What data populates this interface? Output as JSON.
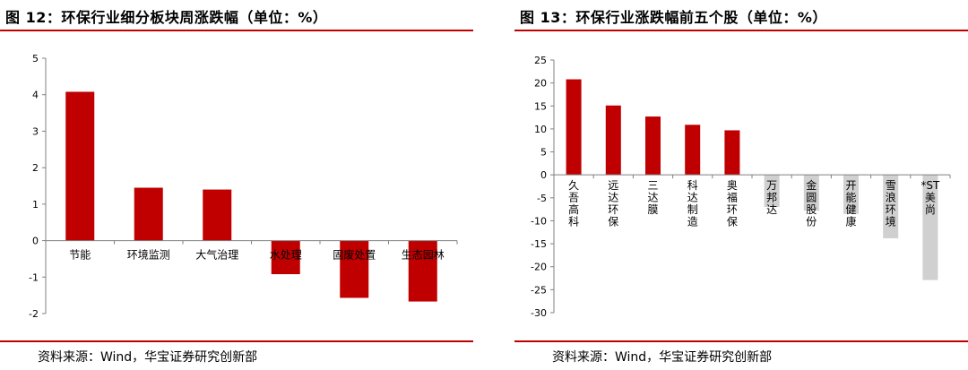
{
  "left_panel": {
    "title": "图 12：环保行业细分板块周涨跌幅（单位：%）",
    "source": "资料来源：Wind，华宝证券研究创新部"
  },
  "right_panel": {
    "title": "图 13：环保行业涨跌幅前五个股（单位：%）",
    "source": "资料来源：Wind，华宝证券研究创新部"
  },
  "colors": {
    "rule": "#c00000",
    "positive": "#c00000",
    "negative": "#c00000",
    "gray": "#d0d0d0"
  },
  "chart_data": [
    {
      "type": "bar",
      "categories": [
        "节能",
        "环境监测",
        "大气治理",
        "水处理",
        "固废处置",
        "生态园林"
      ],
      "values": [
        4.08,
        1.45,
        1.4,
        -0.92,
        -1.57,
        -1.67
      ],
      "ylim": [
        -2,
        5
      ],
      "yticks": [
        5,
        4,
        3,
        2,
        1,
        0,
        -1,
        -2
      ],
      "bar_colors": [
        "#c00000",
        "#c00000",
        "#c00000",
        "#c00000",
        "#c00000",
        "#c00000"
      ]
    },
    {
      "type": "bar",
      "categories": [
        "久吾高科",
        "远达环保",
        "三达膜",
        "科达制造",
        "奥福环保",
        "万邦达",
        "金圆股份",
        "开能健康",
        "雪浪环境",
        "*ST美尚"
      ],
      "values": [
        20.8,
        15.1,
        12.7,
        10.9,
        9.7,
        -7.0,
        -7.8,
        -8.5,
        -13.8,
        -22.9
      ],
      "ylim": [
        -30,
        25
      ],
      "yticks": [
        25,
        20,
        15,
        10,
        5,
        0,
        -5,
        -10,
        -15,
        -20,
        -25,
        -30
      ],
      "bar_colors": [
        "#c00000",
        "#c00000",
        "#c00000",
        "#c00000",
        "#c00000",
        "#d0d0d0",
        "#d0d0d0",
        "#d0d0d0",
        "#d0d0d0",
        "#d0d0d0"
      ]
    }
  ]
}
